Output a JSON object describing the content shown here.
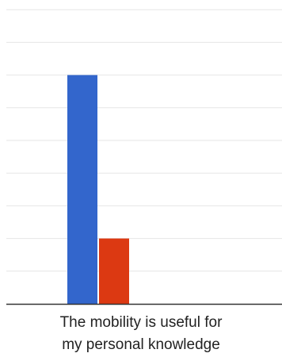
{
  "chart_data": {
    "type": "bar",
    "categories": [
      "The mobility is useful for my personal knowledge"
    ],
    "category_lines": [
      "The mobility is useful for",
      "my personal knowledge"
    ],
    "series": [
      {
        "values": [
          7
        ],
        "color": "#3366cc"
      },
      {
        "values": [
          2
        ],
        "color": "#dc3912"
      },
      {
        "values": [
          0
        ],
        "color": "#ff9900"
      }
    ],
    "title": "",
    "xlabel": "",
    "ylabel": "",
    "ylim": [
      0,
      9
    ],
    "grid": true,
    "legend": "none"
  }
}
